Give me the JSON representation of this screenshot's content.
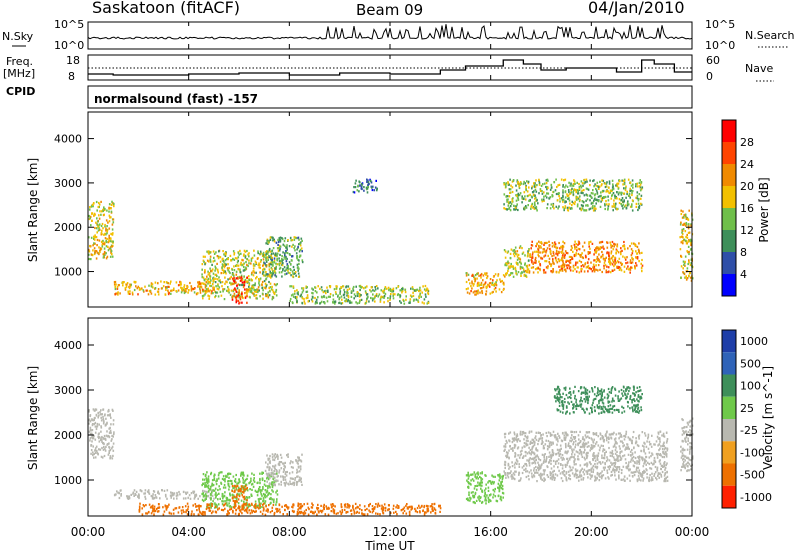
{
  "header": {
    "station": "Saskatoon (fitACF)",
    "beam": "Beam 09",
    "date": "04/Jan/2010"
  },
  "noise_panel": {
    "left_label": "N.Sky",
    "left_ticks": [
      "10^5",
      "10^0"
    ],
    "right_label": "N.Search",
    "right_ticks": [
      "10^5",
      "10^0"
    ]
  },
  "freq_panel": {
    "left_label_1": "Freq.",
    "left_label_2": "[MHz]",
    "left_ticks": [
      "18",
      "8"
    ],
    "right_label": "Nave",
    "right_ticks": [
      "60",
      "0"
    ],
    "cpid_label": "CPID",
    "mode_text": "normalsound (fast) -157"
  },
  "colors": {
    "power_scale": [
      "#0000ff",
      "#2f4fa8",
      "#3e8f5a",
      "#6fbf4a",
      "#f2c000",
      "#f08a00",
      "#ff4400",
      "#ff0000"
    ],
    "velocity_scale": [
      "#1e3ea8",
      "#2f63b8",
      "#3e8f5a",
      "#6fc94a",
      "#b8b8b0",
      "#f0a020",
      "#ee7000",
      "#ff2000"
    ],
    "ground_scatter": "#b8b8b0"
  },
  "chart_data": [
    {
      "type": "heatmap",
      "panel": "power",
      "ylabel": "Slant Range [km]",
      "yticks": [
        "1000",
        "2000",
        "3000",
        "4000"
      ],
      "ylim": [
        200,
        4600
      ],
      "xlim_hours": [
        0,
        24
      ],
      "colorbar_label": "Power [dB]",
      "colorbar_ticks": [
        "4",
        "8",
        "12",
        "16",
        "20",
        "24",
        "28"
      ],
      "regions": [
        {
          "t0": 0.0,
          "t1": 1.0,
          "r0": 1300,
          "r1": 2600,
          "value": 18
        },
        {
          "t0": 1.0,
          "t1": 5.0,
          "r0": 500,
          "r1": 800,
          "value": 20
        },
        {
          "t0": 4.5,
          "t1": 7.5,
          "r0": 400,
          "r1": 1500,
          "value": 16
        },
        {
          "t0": 5.7,
          "t1": 6.3,
          "r0": 300,
          "r1": 900,
          "value": 26
        },
        {
          "t0": 7.0,
          "t1": 8.5,
          "r0": 900,
          "r1": 1800,
          "value": 12
        },
        {
          "t0": 8.0,
          "t1": 13.5,
          "r0": 300,
          "r1": 700,
          "value": 14
        },
        {
          "t0": 10.5,
          "t1": 11.5,
          "r0": 2800,
          "r1": 3100,
          "value": 8
        },
        {
          "t0": 15.0,
          "t1": 16.5,
          "r0": 500,
          "r1": 1000,
          "value": 20
        },
        {
          "t0": 16.5,
          "t1": 17.5,
          "r0": 900,
          "r1": 1600,
          "value": 16
        },
        {
          "t0": 17.5,
          "t1": 22.0,
          "r0": 1000,
          "r1": 1700,
          "value": 22
        },
        {
          "t0": 16.5,
          "t1": 22.0,
          "r0": 2400,
          "r1": 3100,
          "value": 14
        },
        {
          "t0": 23.5,
          "t1": 24.0,
          "r0": 800,
          "r1": 2400,
          "value": 18
        }
      ]
    },
    {
      "type": "heatmap",
      "panel": "velocity",
      "ylabel": "Slant Range [km]",
      "yticks": [
        "1000",
        "2000",
        "3000",
        "4000"
      ],
      "ylim": [
        200,
        4600
      ],
      "xlim_hours": [
        0,
        24
      ],
      "xticks": [
        "00:00",
        "04:00",
        "08:00",
        "12:00",
        "16:00",
        "20:00",
        "00:00"
      ],
      "xlabel": "Time UT",
      "colorbar_label": "Velocity [m s^-1]",
      "colorbar_ticks": [
        "1000",
        "500",
        "100",
        "25",
        "-25",
        "-100",
        "-500",
        "-1000"
      ],
      "regions": [
        {
          "t0": 0.0,
          "t1": 1.0,
          "r0": 1500,
          "r1": 2600,
          "value": 0
        },
        {
          "t0": 1.0,
          "t1": 5.0,
          "r0": 600,
          "r1": 800,
          "value": 0
        },
        {
          "t0": 4.5,
          "t1": 7.5,
          "r0": 400,
          "r1": 1200,
          "value": 50
        },
        {
          "t0": 5.7,
          "t1": 6.3,
          "r0": 300,
          "r1": 900,
          "value": -400
        },
        {
          "t0": 2.0,
          "t1": 14.0,
          "r0": 250,
          "r1": 500,
          "value": -150
        },
        {
          "t0": 7.0,
          "t1": 8.5,
          "r0": 900,
          "r1": 1600,
          "value": 0
        },
        {
          "t0": 15.0,
          "t1": 16.5,
          "r0": 500,
          "r1": 1200,
          "value": 60
        },
        {
          "t0": 16.5,
          "t1": 23.0,
          "r0": 1000,
          "r1": 2100,
          "value": 0
        },
        {
          "t0": 18.5,
          "t1": 22.0,
          "r0": 2500,
          "r1": 3100,
          "value": 150
        },
        {
          "t0": 23.5,
          "t1": 24.0,
          "r0": 1200,
          "r1": 2400,
          "value": 0
        }
      ]
    }
  ]
}
